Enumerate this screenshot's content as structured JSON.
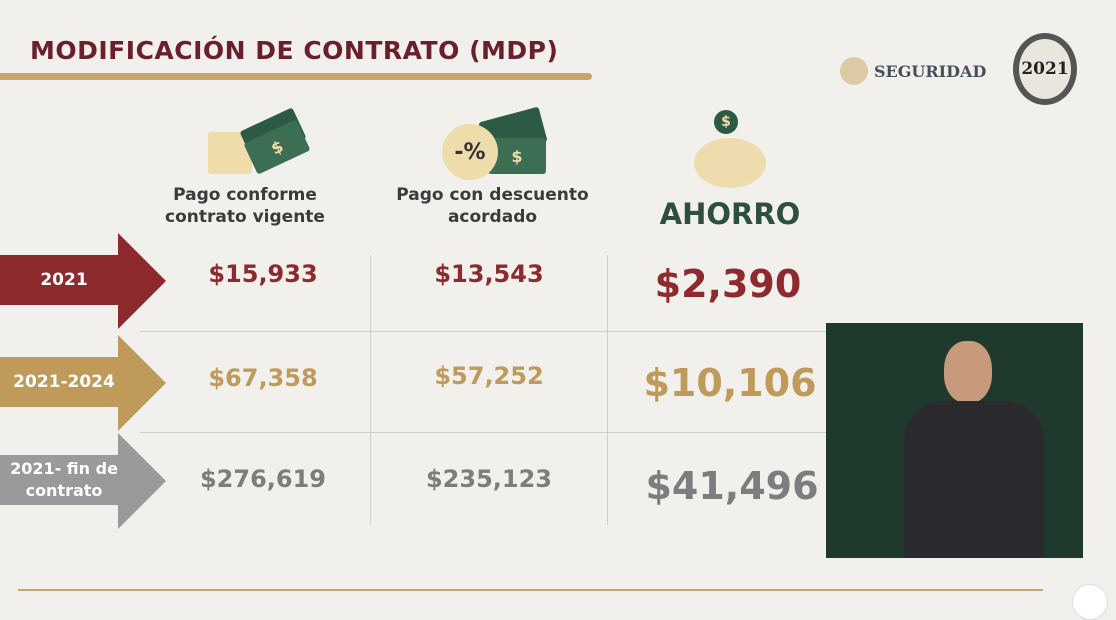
{
  "title": "MODIFICACIÓN DE CONTRATO (MDP)",
  "logos": {
    "seguridad": "SEGURIDAD",
    "year_badge": "2021"
  },
  "columns": [
    {
      "label": "Pago conforme contrato vigente",
      "icon": "money-document-icon"
    },
    {
      "label": "Pago con descuento acordado",
      "icon": "discount-money-icon",
      "icon_text": "-%"
    },
    {
      "label": "AHORRO",
      "icon": "piggy-bank-icon"
    }
  ],
  "rows": [
    {
      "period": "2021",
      "color": "#8c2a2e",
      "contract": "$15,933",
      "discount": "$13,543",
      "savings": "$2,390"
    },
    {
      "period": "2021-2024",
      "color": "#bf9a5a",
      "contract": "$67,358",
      "discount": "$57,252",
      "savings": "$10,106"
    },
    {
      "period": "2021- fin de contrato",
      "color": "#9a9a9a",
      "contract": "$276,619",
      "discount": "$235,123",
      "savings": "$41,496"
    }
  ],
  "colors": {
    "title": "#6a1f2b",
    "accent": "#c7a46a",
    "ahorro": "#2d4f3c",
    "video_bg": "#1f3a2d"
  }
}
